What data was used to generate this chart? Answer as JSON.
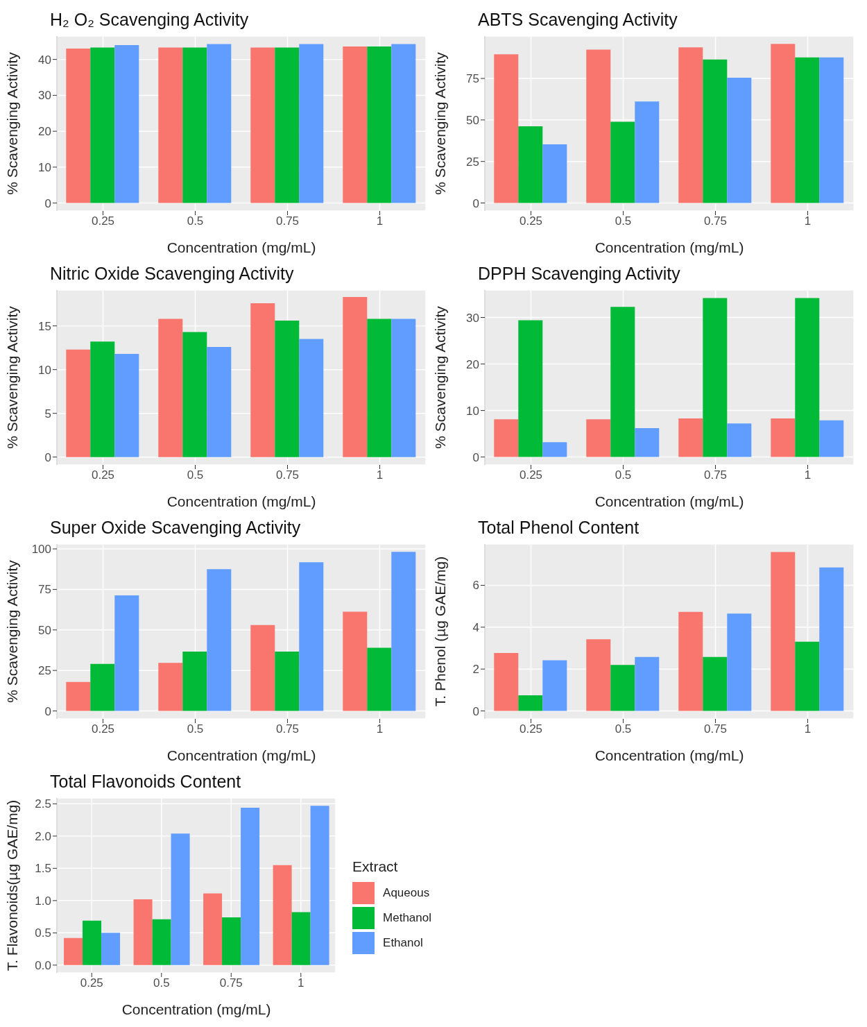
{
  "chart_data": [
    {
      "type": "bar",
      "title": "H₂ O₂ Scavenging Activity",
      "xlabel": "Concentration (mg/mL)",
      "ylabel": "% Scavenging Activity",
      "categories": [
        "0.25",
        "0.5",
        "0.75",
        "1"
      ],
      "series": [
        {
          "color": "#f8766d",
          "values": [
            43.0,
            43.3,
            43.3,
            43.6
          ]
        },
        {
          "color": "#00ba38",
          "values": [
            43.3,
            43.3,
            43.3,
            43.6
          ]
        },
        {
          "color": "#619cff",
          "values": [
            44.0,
            44.3,
            44.3,
            44.3
          ]
        }
      ],
      "ylim": [
        -2.2,
        46.5
      ],
      "yticks": [
        0,
        10,
        20,
        30,
        40
      ],
      "grid": true
    },
    {
      "type": "bar",
      "title": "ABTS Scavenging Activity",
      "xlabel": "Concentration (mg/mL)",
      "ylabel": "% Scavenging Activity",
      "categories": [
        "0.25",
        "0.5",
        "0.75",
        "1"
      ],
      "series": [
        {
          "color": "#f8766d",
          "values": [
            89.5,
            92.3,
            93.7,
            95.8
          ]
        },
        {
          "color": "#00ba38",
          "values": [
            46.2,
            48.9,
            86.4,
            87.6
          ]
        },
        {
          "color": "#619cff",
          "values": [
            35.3,
            61.1,
            75.4,
            87.6
          ]
        }
      ],
      "ylim": [
        -4.8,
        100.5
      ],
      "yticks": [
        0,
        25,
        50,
        75
      ],
      "grid": true
    },
    {
      "type": "bar",
      "title": "Nitric Oxide Scavenging Activity",
      "xlabel": "Concentration (mg/mL)",
      "ylabel": "% Scavenging Activity",
      "categories": [
        "0.25",
        "0.5",
        "0.75",
        "1"
      ],
      "series": [
        {
          "color": "#f8766d",
          "values": [
            12.3,
            15.8,
            17.6,
            18.3
          ]
        },
        {
          "color": "#00ba38",
          "values": [
            13.2,
            14.3,
            15.6,
            15.8
          ]
        },
        {
          "color": "#619cff",
          "values": [
            11.8,
            12.6,
            13.5,
            15.8
          ]
        }
      ],
      "ylim": [
        -0.9,
        19.1
      ],
      "yticks": [
        0,
        5,
        10,
        15
      ],
      "grid": true
    },
    {
      "type": "bar",
      "title": "DPPH Scavenging Activity",
      "xlabel": "Concentration (mg/mL)",
      "ylabel": "% Scavenging Activity",
      "categories": [
        "0.25",
        "0.5",
        "0.75",
        "1"
      ],
      "series": [
        {
          "color": "#f8766d",
          "values": [
            8.1,
            8.1,
            8.3,
            8.3
          ]
        },
        {
          "color": "#00ba38",
          "values": [
            29.4,
            32.3,
            34.2,
            34.2
          ]
        },
        {
          "color": "#619cff",
          "values": [
            3.2,
            6.2,
            7.2,
            7.9
          ]
        }
      ],
      "ylim": [
        -1.7,
        35.9
      ],
      "yticks": [
        0,
        10,
        20,
        30
      ],
      "grid": true
    },
    {
      "type": "bar",
      "title": "Super Oxide Scavenging Activity",
      "xlabel": "Concentration (mg/mL)",
      "ylabel": "% Scavenging Activity",
      "categories": [
        "0.25",
        "0.5",
        "0.75",
        "1"
      ],
      "series": [
        {
          "color": "#f8766d",
          "values": [
            17.9,
            29.7,
            53,
            61.3
          ]
        },
        {
          "color": "#00ba38",
          "values": [
            29,
            36.6,
            36.6,
            39
          ]
        },
        {
          "color": "#619cff",
          "values": [
            71.3,
            87.5,
            91.8,
            98.2
          ]
        }
      ],
      "ylim": [
        -4.9,
        103
      ],
      "yticks": [
        0,
        25,
        50,
        75,
        100
      ],
      "grid": true
    },
    {
      "type": "bar",
      "title": "Total Phenol Content",
      "xlabel": "Concentration (mg/mL)",
      "ylabel": "T. Phenol (µg GAE/mg)",
      "categories": [
        "0.25",
        "0.5",
        "0.75",
        "1"
      ],
      "series": [
        {
          "color": "#f8766d",
          "values": [
            2.77,
            3.42,
            4.73,
            7.59
          ]
        },
        {
          "color": "#00ba38",
          "values": [
            0.75,
            2.2,
            2.58,
            3.31
          ]
        },
        {
          "color": "#619cff",
          "values": [
            2.42,
            2.58,
            4.65,
            6.85
          ]
        }
      ],
      "ylim": [
        -0.38,
        7.97
      ],
      "yticks": [
        0,
        2,
        4,
        6
      ],
      "grid": true
    },
    {
      "type": "bar",
      "title": "Total Flavonoids Content",
      "xlabel": "Concentration (mg/mL)",
      "ylabel": "T. Flavonoids(µg GAE/mg)",
      "legend_title": "Extract",
      "legend": "right",
      "categories": [
        "0.25",
        "0.5",
        "0.75",
        "1"
      ],
      "series": [
        {
          "name": "Aqueous",
          "color": "#f8766d",
          "values": [
            0.42,
            1.02,
            1.11,
            1.55
          ]
        },
        {
          "name": "Methanol",
          "color": "#00ba38",
          "values": [
            0.69,
            0.71,
            0.74,
            0.82
          ]
        },
        {
          "name": "Ethanol",
          "color": "#619cff",
          "values": [
            0.5,
            2.04,
            2.44,
            2.47
          ]
        }
      ],
      "ylim": [
        -0.12,
        2.59
      ],
      "yticks": [
        {
          "value": 0,
          "label": "0.0"
        },
        0.5,
        {
          "value": 1,
          "label": "1.0"
        },
        1.5,
        {
          "value": 2,
          "label": "2.0"
        },
        2.5
      ],
      "grid": true
    }
  ]
}
